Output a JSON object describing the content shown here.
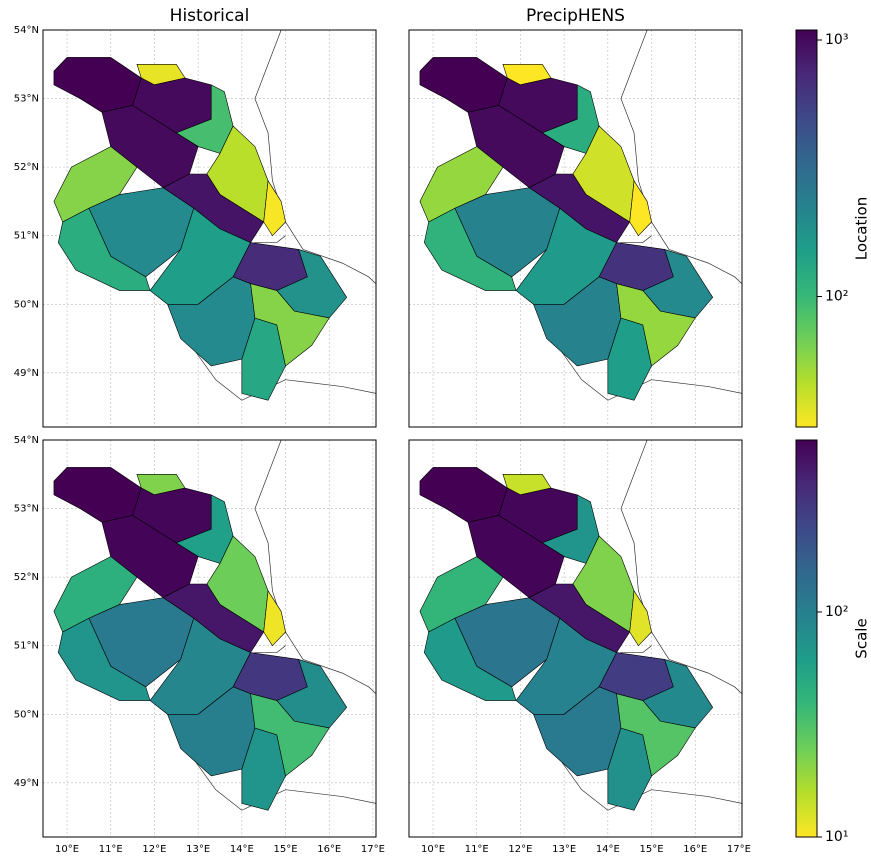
{
  "titles": [
    "Historical",
    "PrecipHENS"
  ],
  "colormap": "viridis_r",
  "xlim": [
    9.45,
    17.07
  ],
  "ylim": [
    48.21,
    54
  ],
  "xticks": [
    {
      "value": 10,
      "label": "10°E"
    },
    {
      "value": 11,
      "label": "11°E"
    },
    {
      "value": 12,
      "label": "12°E"
    },
    {
      "value": 13,
      "label": "13°E"
    },
    {
      "value": 14,
      "label": "14°E"
    },
    {
      "value": 15,
      "label": "15°E"
    },
    {
      "value": 16,
      "label": "16°E"
    },
    {
      "value": 17,
      "label": "17°E"
    }
  ],
  "yticks": [
    {
      "value": 49,
      "label": "49°N"
    },
    {
      "value": 50,
      "label": "50°N"
    },
    {
      "value": 51,
      "label": "51°N"
    },
    {
      "value": 52,
      "label": "52°N"
    },
    {
      "value": 53,
      "label": "53°N"
    },
    {
      "value": 54,
      "label": "54°N"
    }
  ],
  "grid": true,
  "colorbars": [
    {
      "label": "Location",
      "log": true,
      "lim": [
        31,
        1094
      ],
      "ticks": [
        {
          "value": 100,
          "label": "10²"
        },
        {
          "value": 1000,
          "label": "10³"
        }
      ]
    },
    {
      "label": "Scale",
      "log": true,
      "lim": [
        10,
        581
      ],
      "ticks": [
        {
          "value": 10,
          "label": "10¹"
        },
        {
          "value": 100,
          "label": "10²"
        }
      ]
    }
  ],
  "panels": [
    {
      "colorbar": 0,
      "values": [
        1100,
        35,
        1000,
        90,
        1000,
        45,
        32,
        900,
        60,
        200,
        120,
        150,
        700,
        180,
        200,
        130,
        60
      ]
    },
    {
      "colorbar": 0,
      "values": [
        1100,
        31,
        1000,
        120,
        1000,
        40,
        31,
        900,
        55,
        220,
        110,
        160,
        650,
        200,
        220,
        150,
        55
      ]
    },
    {
      "colorbar": 1,
      "values": [
        580,
        22,
        550,
        60,
        560,
        25,
        11,
        450,
        45,
        110,
        70,
        90,
        300,
        80,
        100,
        70,
        35
      ]
    },
    {
      "colorbar": 1,
      "values": [
        580,
        14,
        550,
        70,
        560,
        22,
        12,
        450,
        40,
        120,
        65,
        95,
        280,
        85,
        110,
        75,
        30
      ]
    }
  ]
}
